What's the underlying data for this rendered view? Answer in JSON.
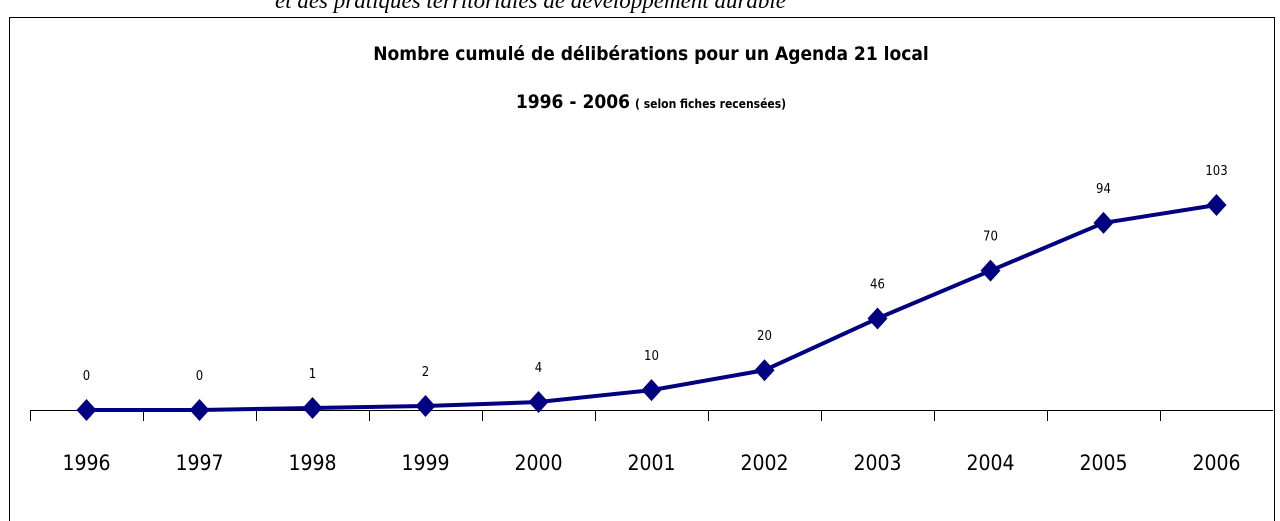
{
  "caption": "et des pratiques territoriales de développement durable",
  "chart_data": {
    "type": "line",
    "title": "Nombre cumulé de délibérations  pour un Agenda 21 local",
    "subtitle": "1996 - 2006",
    "subtitle_note": "( selon fiches recensées)",
    "categories": [
      "1996",
      "1997",
      "1998",
      "1999",
      "2000",
      "2001",
      "2002",
      "2003",
      "2004",
      "2005",
      "2006"
    ],
    "values": [
      0,
      0,
      1,
      2,
      4,
      10,
      20,
      46,
      70,
      94,
      103
    ],
    "color": "#000080"
  }
}
